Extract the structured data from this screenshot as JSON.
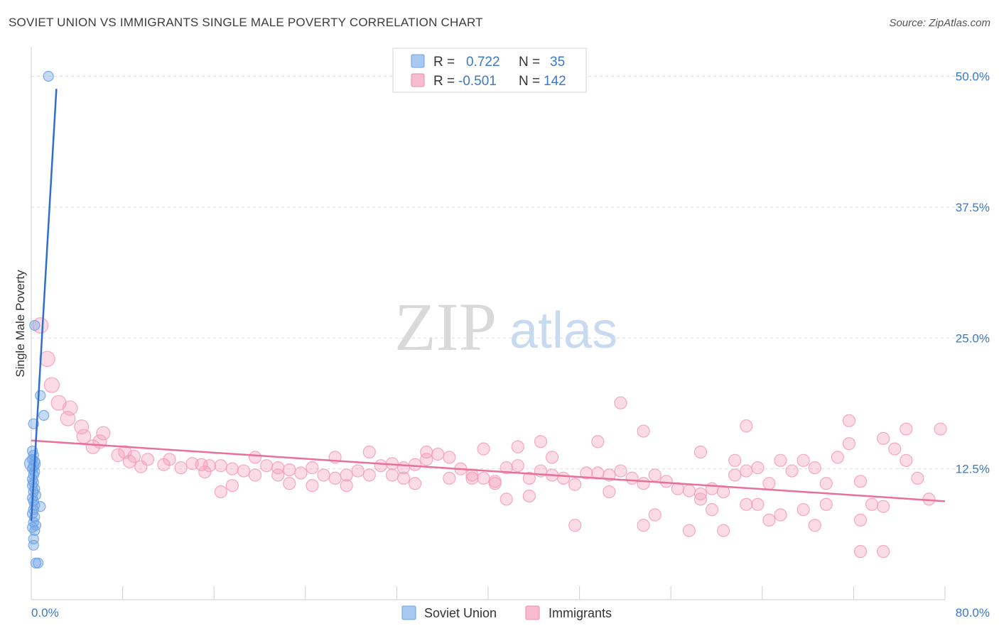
{
  "header": {
    "title": "SOVIET UNION VS IMMIGRANTS SINGLE MALE POVERTY CORRELATION CHART",
    "source": "Source: ZipAtlas.com"
  },
  "watermark": {
    "zip": "ZIP",
    "atlas": "atlas"
  },
  "legend_top": {
    "rows": [
      {
        "r_label": "R =",
        "r_value": "0.722",
        "n_label": "N =",
        "n_value": "35",
        "color": "#a9c8f2",
        "stroke": "#6f9fe0"
      },
      {
        "r_label": "R =",
        "r_value": "-0.501",
        "n_label": "N =",
        "n_value": "142",
        "color": "#f7bcd0",
        "stroke": "#ee8aaa"
      }
    ]
  },
  "legend_bottom": {
    "items": [
      {
        "label": "Soviet Union",
        "color": "#a9c8f2",
        "stroke": "#6f9fe0"
      },
      {
        "label": "Immigrants",
        "color": "#f7bcd0",
        "stroke": "#ee8aaa"
      }
    ]
  },
  "chart_data": {
    "type": "scatter",
    "title": "SOVIET UNION VS IMMIGRANTS SINGLE MALE POVERTY CORRELATION CHART",
    "xlabel": "",
    "ylabel": "Single Male Poverty",
    "xlim": [
      0,
      80
    ],
    "ylim": [
      0,
      52
    ],
    "x_tick_labels": [
      "0.0%",
      "80.0%"
    ],
    "y_ticks": [
      12.5,
      25.0,
      37.5,
      50.0
    ],
    "y_tick_labels": [
      "12.5%",
      "25.0%",
      "37.5%",
      "50.0%"
    ],
    "grid": "horizontal dashed",
    "legend_placement": "top-center",
    "colors": {
      "soviet": "#6fa3e6",
      "soviet_line": "#2f6fcc",
      "immigrants": "#f49ab8",
      "immigrants_line": "#e8709a"
    },
    "series": [
      {
        "name": "Soviet Union",
        "trend": {
          "x": [
            0.0,
            2.2
          ],
          "y": [
            7.5,
            48.8
          ]
        },
        "points": [
          [
            1.5,
            50.0
          ],
          [
            0.3,
            26.2
          ],
          [
            0.8,
            19.5
          ],
          [
            1.1,
            17.6
          ],
          [
            0.2,
            16.8
          ],
          [
            0.1,
            14.2
          ],
          [
            0.2,
            13.8
          ],
          [
            0.1,
            13.4
          ],
          [
            0.3,
            13.2
          ],
          [
            0.2,
            12.8
          ],
          [
            0.1,
            12.5
          ],
          [
            0.3,
            12.2
          ],
          [
            0.2,
            11.9
          ],
          [
            0.1,
            11.5
          ],
          [
            0.2,
            11.2
          ],
          [
            0.1,
            10.9
          ],
          [
            0.3,
            10.6
          ],
          [
            0.2,
            10.3
          ],
          [
            0.4,
            10.0
          ],
          [
            0.1,
            9.7
          ],
          [
            0.2,
            9.4
          ],
          [
            0.3,
            9.0
          ],
          [
            0.8,
            8.9
          ],
          [
            0.2,
            8.6
          ],
          [
            0.1,
            8.2
          ],
          [
            0.3,
            7.9
          ],
          [
            0.2,
            7.4
          ],
          [
            0.4,
            7.1
          ],
          [
            0.1,
            6.9
          ],
          [
            0.3,
            6.6
          ],
          [
            0.2,
            5.8
          ],
          [
            0.2,
            5.2
          ],
          [
            0.4,
            3.5
          ],
          [
            0.6,
            3.5
          ],
          [
            0.1,
            13.0
          ]
        ]
      },
      {
        "name": "Immigrants",
        "trend": {
          "x": [
            0.0,
            80.0
          ],
          "y": [
            15.2,
            9.4
          ]
        },
        "points": [
          [
            0.8,
            26.2
          ],
          [
            1.4,
            23.0
          ],
          [
            1.8,
            20.5
          ],
          [
            2.4,
            18.8
          ],
          [
            3.4,
            18.3
          ],
          [
            3.2,
            17.3
          ],
          [
            4.4,
            16.5
          ],
          [
            4.6,
            15.6
          ],
          [
            6.3,
            15.9
          ],
          [
            6.0,
            15.1
          ],
          [
            5.4,
            14.6
          ],
          [
            8.2,
            14.1
          ],
          [
            7.6,
            13.8
          ],
          [
            9.0,
            13.7
          ],
          [
            8.6,
            13.2
          ],
          [
            10.2,
            13.4
          ],
          [
            12.1,
            13.4
          ],
          [
            11.6,
            12.9
          ],
          [
            9.6,
            12.7
          ],
          [
            14.1,
            13.0
          ],
          [
            14.9,
            12.9
          ],
          [
            15.6,
            12.8
          ],
          [
            13.1,
            12.6
          ],
          [
            16.6,
            12.8
          ],
          [
            17.6,
            12.5
          ],
          [
            18.6,
            12.3
          ],
          [
            15.2,
            12.2
          ],
          [
            20.6,
            12.8
          ],
          [
            21.6,
            12.6
          ],
          [
            22.6,
            12.4
          ],
          [
            23.6,
            12.1
          ],
          [
            19.6,
            11.9
          ],
          [
            24.6,
            12.6
          ],
          [
            25.6,
            11.9
          ],
          [
            26.6,
            11.6
          ],
          [
            27.6,
            11.9
          ],
          [
            28.6,
            12.3
          ],
          [
            29.6,
            11.9
          ],
          [
            30.6,
            12.8
          ],
          [
            31.6,
            13.0
          ],
          [
            32.6,
            12.6
          ],
          [
            33.6,
            12.9
          ],
          [
            34.6,
            13.4
          ],
          [
            35.6,
            13.9
          ],
          [
            36.6,
            13.6
          ],
          [
            37.6,
            12.5
          ],
          [
            38.6,
            11.9
          ],
          [
            39.6,
            11.6
          ],
          [
            40.6,
            11.3
          ],
          [
            41.6,
            12.6
          ],
          [
            42.6,
            12.8
          ],
          [
            43.6,
            11.6
          ],
          [
            44.6,
            12.3
          ],
          [
            45.6,
            11.9
          ],
          [
            46.6,
            11.6
          ],
          [
            47.6,
            11.0
          ],
          [
            48.6,
            12.1
          ],
          [
            49.6,
            12.1
          ],
          [
            50.6,
            11.9
          ],
          [
            51.6,
            12.3
          ],
          [
            52.6,
            11.6
          ],
          [
            53.6,
            11.1
          ],
          [
            54.6,
            11.9
          ],
          [
            55.6,
            11.3
          ],
          [
            56.6,
            10.6
          ],
          [
            57.6,
            10.4
          ],
          [
            58.6,
            10.1
          ],
          [
            59.6,
            10.6
          ],
          [
            60.6,
            10.3
          ],
          [
            61.6,
            11.9
          ],
          [
            62.6,
            12.3
          ],
          [
            63.6,
            12.6
          ],
          [
            64.6,
            11.1
          ],
          [
            65.6,
            13.3
          ],
          [
            66.6,
            12.3
          ],
          [
            67.6,
            13.3
          ],
          [
            68.6,
            12.6
          ],
          [
            69.6,
            11.1
          ],
          [
            70.6,
            13.6
          ],
          [
            71.6,
            14.9
          ],
          [
            72.6,
            11.3
          ],
          [
            73.6,
            9.1
          ],
          [
            74.6,
            15.4
          ],
          [
            75.6,
            14.4
          ],
          [
            76.6,
            13.3
          ],
          [
            77.6,
            11.6
          ],
          [
            78.6,
            9.6
          ],
          [
            79.6,
            16.3
          ],
          [
            51.6,
            18.8
          ],
          [
            53.6,
            16.1
          ],
          [
            62.6,
            16.6
          ],
          [
            71.6,
            17.1
          ],
          [
            76.6,
            16.3
          ],
          [
            44.6,
            15.1
          ],
          [
            49.6,
            15.1
          ],
          [
            58.6,
            14.1
          ],
          [
            39.6,
            14.4
          ],
          [
            42.6,
            14.6
          ],
          [
            29.6,
            14.1
          ],
          [
            19.6,
            13.6
          ],
          [
            26.6,
            13.6
          ],
          [
            34.6,
            14.1
          ],
          [
            45.6,
            13.6
          ],
          [
            61.6,
            13.3
          ],
          [
            67.6,
            8.6
          ],
          [
            59.6,
            8.6
          ],
          [
            63.6,
            9.1
          ],
          [
            69.6,
            9.1
          ],
          [
            72.6,
            7.6
          ],
          [
            74.6,
            8.9
          ],
          [
            53.6,
            7.1
          ],
          [
            47.6,
            7.1
          ],
          [
            57.6,
            6.6
          ],
          [
            60.6,
            6.6
          ],
          [
            64.6,
            7.6
          ],
          [
            65.6,
            8.1
          ],
          [
            68.6,
            7.1
          ],
          [
            58.6,
            9.6
          ],
          [
            62.6,
            9.1
          ],
          [
            54.6,
            8.1
          ],
          [
            40.6,
            11.1
          ],
          [
            41.6,
            9.6
          ],
          [
            43.6,
            9.9
          ],
          [
            50.6,
            10.3
          ],
          [
            22.6,
            11.1
          ],
          [
            24.6,
            10.9
          ],
          [
            27.6,
            10.9
          ],
          [
            16.6,
            10.3
          ],
          [
            17.6,
            10.9
          ],
          [
            21.6,
            11.9
          ],
          [
            31.6,
            11.9
          ],
          [
            32.6,
            11.6
          ],
          [
            33.6,
            11.1
          ],
          [
            36.6,
            11.6
          ],
          [
            38.6,
            11.6
          ],
          [
            72.6,
            4.6
          ],
          [
            74.6,
            4.6
          ]
        ]
      }
    ]
  }
}
